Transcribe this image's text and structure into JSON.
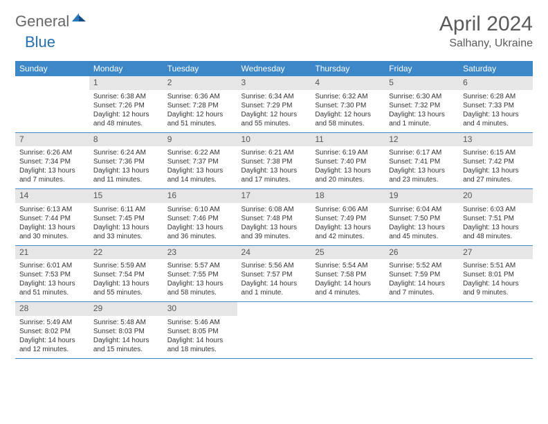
{
  "logo": {
    "text1": "General",
    "text2": "Blue"
  },
  "title": "April 2024",
  "location": "Salhany, Ukraine",
  "colors": {
    "header_bg": "#3c87c7",
    "header_text": "#ffffff",
    "daynum_bg": "#e6e6e6",
    "row_divider": "#3c87c7",
    "title_color": "#5a5a5a",
    "logo_grey": "#676767",
    "logo_blue": "#2370b1",
    "body_text": "#333333",
    "page_bg": "#ffffff"
  },
  "weekdays": [
    "Sunday",
    "Monday",
    "Tuesday",
    "Wednesday",
    "Thursday",
    "Friday",
    "Saturday"
  ],
  "weeks": [
    [
      {
        "n": "",
        "sunrise": "",
        "sunset": "",
        "daylight": ""
      },
      {
        "n": "1",
        "sunrise": "Sunrise: 6:38 AM",
        "sunset": "Sunset: 7:26 PM",
        "daylight": "Daylight: 12 hours and 48 minutes."
      },
      {
        "n": "2",
        "sunrise": "Sunrise: 6:36 AM",
        "sunset": "Sunset: 7:28 PM",
        "daylight": "Daylight: 12 hours and 51 minutes."
      },
      {
        "n": "3",
        "sunrise": "Sunrise: 6:34 AM",
        "sunset": "Sunset: 7:29 PM",
        "daylight": "Daylight: 12 hours and 55 minutes."
      },
      {
        "n": "4",
        "sunrise": "Sunrise: 6:32 AM",
        "sunset": "Sunset: 7:30 PM",
        "daylight": "Daylight: 12 hours and 58 minutes."
      },
      {
        "n": "5",
        "sunrise": "Sunrise: 6:30 AM",
        "sunset": "Sunset: 7:32 PM",
        "daylight": "Daylight: 13 hours and 1 minute."
      },
      {
        "n": "6",
        "sunrise": "Sunrise: 6:28 AM",
        "sunset": "Sunset: 7:33 PM",
        "daylight": "Daylight: 13 hours and 4 minutes."
      }
    ],
    [
      {
        "n": "7",
        "sunrise": "Sunrise: 6:26 AM",
        "sunset": "Sunset: 7:34 PM",
        "daylight": "Daylight: 13 hours and 7 minutes."
      },
      {
        "n": "8",
        "sunrise": "Sunrise: 6:24 AM",
        "sunset": "Sunset: 7:36 PM",
        "daylight": "Daylight: 13 hours and 11 minutes."
      },
      {
        "n": "9",
        "sunrise": "Sunrise: 6:22 AM",
        "sunset": "Sunset: 7:37 PM",
        "daylight": "Daylight: 13 hours and 14 minutes."
      },
      {
        "n": "10",
        "sunrise": "Sunrise: 6:21 AM",
        "sunset": "Sunset: 7:38 PM",
        "daylight": "Daylight: 13 hours and 17 minutes."
      },
      {
        "n": "11",
        "sunrise": "Sunrise: 6:19 AM",
        "sunset": "Sunset: 7:40 PM",
        "daylight": "Daylight: 13 hours and 20 minutes."
      },
      {
        "n": "12",
        "sunrise": "Sunrise: 6:17 AM",
        "sunset": "Sunset: 7:41 PM",
        "daylight": "Daylight: 13 hours and 23 minutes."
      },
      {
        "n": "13",
        "sunrise": "Sunrise: 6:15 AM",
        "sunset": "Sunset: 7:42 PM",
        "daylight": "Daylight: 13 hours and 27 minutes."
      }
    ],
    [
      {
        "n": "14",
        "sunrise": "Sunrise: 6:13 AM",
        "sunset": "Sunset: 7:44 PM",
        "daylight": "Daylight: 13 hours and 30 minutes."
      },
      {
        "n": "15",
        "sunrise": "Sunrise: 6:11 AM",
        "sunset": "Sunset: 7:45 PM",
        "daylight": "Daylight: 13 hours and 33 minutes."
      },
      {
        "n": "16",
        "sunrise": "Sunrise: 6:10 AM",
        "sunset": "Sunset: 7:46 PM",
        "daylight": "Daylight: 13 hours and 36 minutes."
      },
      {
        "n": "17",
        "sunrise": "Sunrise: 6:08 AM",
        "sunset": "Sunset: 7:48 PM",
        "daylight": "Daylight: 13 hours and 39 minutes."
      },
      {
        "n": "18",
        "sunrise": "Sunrise: 6:06 AM",
        "sunset": "Sunset: 7:49 PM",
        "daylight": "Daylight: 13 hours and 42 minutes."
      },
      {
        "n": "19",
        "sunrise": "Sunrise: 6:04 AM",
        "sunset": "Sunset: 7:50 PM",
        "daylight": "Daylight: 13 hours and 45 minutes."
      },
      {
        "n": "20",
        "sunrise": "Sunrise: 6:03 AM",
        "sunset": "Sunset: 7:51 PM",
        "daylight": "Daylight: 13 hours and 48 minutes."
      }
    ],
    [
      {
        "n": "21",
        "sunrise": "Sunrise: 6:01 AM",
        "sunset": "Sunset: 7:53 PM",
        "daylight": "Daylight: 13 hours and 51 minutes."
      },
      {
        "n": "22",
        "sunrise": "Sunrise: 5:59 AM",
        "sunset": "Sunset: 7:54 PM",
        "daylight": "Daylight: 13 hours and 55 minutes."
      },
      {
        "n": "23",
        "sunrise": "Sunrise: 5:57 AM",
        "sunset": "Sunset: 7:55 PM",
        "daylight": "Daylight: 13 hours and 58 minutes."
      },
      {
        "n": "24",
        "sunrise": "Sunrise: 5:56 AM",
        "sunset": "Sunset: 7:57 PM",
        "daylight": "Daylight: 14 hours and 1 minute."
      },
      {
        "n": "25",
        "sunrise": "Sunrise: 5:54 AM",
        "sunset": "Sunset: 7:58 PM",
        "daylight": "Daylight: 14 hours and 4 minutes."
      },
      {
        "n": "26",
        "sunrise": "Sunrise: 5:52 AM",
        "sunset": "Sunset: 7:59 PM",
        "daylight": "Daylight: 14 hours and 7 minutes."
      },
      {
        "n": "27",
        "sunrise": "Sunrise: 5:51 AM",
        "sunset": "Sunset: 8:01 PM",
        "daylight": "Daylight: 14 hours and 9 minutes."
      }
    ],
    [
      {
        "n": "28",
        "sunrise": "Sunrise: 5:49 AM",
        "sunset": "Sunset: 8:02 PM",
        "daylight": "Daylight: 14 hours and 12 minutes."
      },
      {
        "n": "29",
        "sunrise": "Sunrise: 5:48 AM",
        "sunset": "Sunset: 8:03 PM",
        "daylight": "Daylight: 14 hours and 15 minutes."
      },
      {
        "n": "30",
        "sunrise": "Sunrise: 5:46 AM",
        "sunset": "Sunset: 8:05 PM",
        "daylight": "Daylight: 14 hours and 18 minutes."
      },
      {
        "n": "",
        "sunrise": "",
        "sunset": "",
        "daylight": ""
      },
      {
        "n": "",
        "sunrise": "",
        "sunset": "",
        "daylight": ""
      },
      {
        "n": "",
        "sunrise": "",
        "sunset": "",
        "daylight": ""
      },
      {
        "n": "",
        "sunrise": "",
        "sunset": "",
        "daylight": ""
      }
    ]
  ]
}
